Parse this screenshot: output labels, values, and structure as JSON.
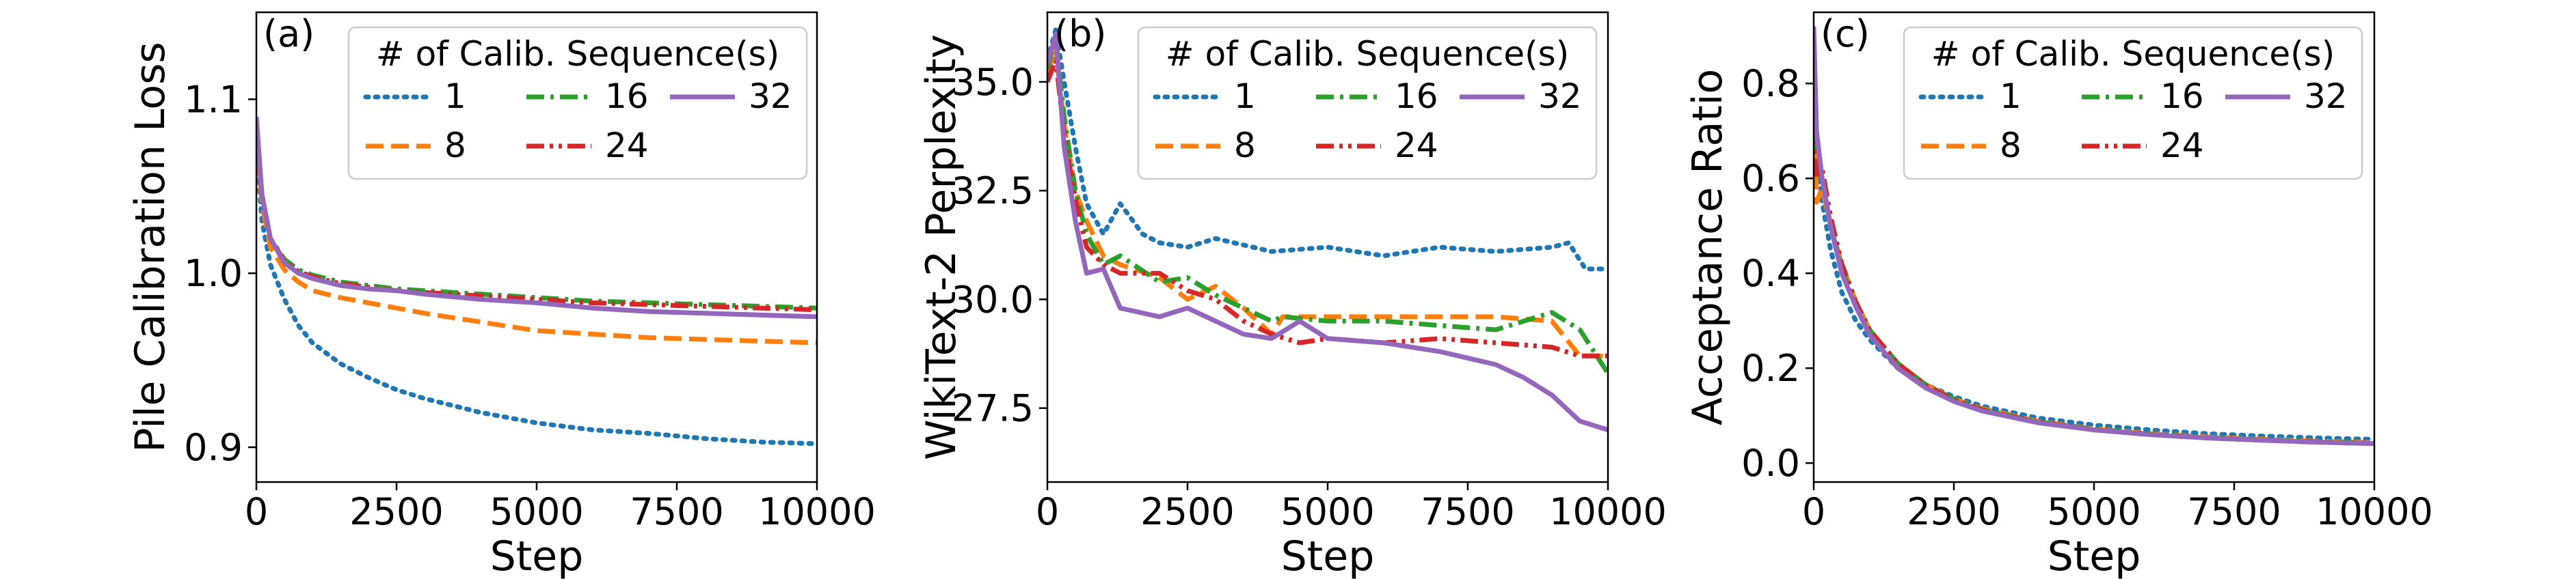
{
  "chart_data": [
    {
      "type": "line",
      "panel_tag": "(a)",
      "xlabel": "Step",
      "ylabel": "Pile Calibration Loss",
      "xlim": [
        0,
        10000
      ],
      "ylim": [
        0.88,
        1.15
      ],
      "xticks": [
        0,
        2500,
        5000,
        7500,
        10000
      ],
      "xtick_labels": [
        "0",
        "2500",
        "5000",
        "7500",
        "10000"
      ],
      "yticks": [
        0.9,
        1.0,
        1.1
      ],
      "ytick_labels": [
        "0.9",
        "1.0",
        "1.1"
      ],
      "legend": {
        "title": "# of Calib. Sequence(s)",
        "position": "top-right",
        "entries": [
          "1",
          "8",
          "16",
          "24",
          "32"
        ]
      },
      "series": [
        {
          "name": "1",
          "x": [
            0,
            100,
            250,
            500,
            750,
            1000,
            1500,
            2000,
            2500,
            3000,
            4000,
            5000,
            6000,
            7000,
            8000,
            9000,
            10000
          ],
          "values": [
            1.07,
            1.03,
            1.005,
            0.985,
            0.97,
            0.96,
            0.948,
            0.94,
            0.933,
            0.928,
            0.92,
            0.914,
            0.91,
            0.908,
            0.905,
            0.903,
            0.902
          ]
        },
        {
          "name": "8",
          "x": [
            0,
            100,
            250,
            500,
            750,
            1000,
            1500,
            2000,
            2500,
            3000,
            4000,
            5000,
            6000,
            7000,
            8000,
            9000,
            10000
          ],
          "values": [
            1.08,
            1.04,
            1.015,
            1.002,
            0.995,
            0.99,
            0.986,
            0.983,
            0.98,
            0.977,
            0.972,
            0.967,
            0.965,
            0.963,
            0.962,
            0.961,
            0.96
          ]
        },
        {
          "name": "16",
          "x": [
            0,
            100,
            250,
            500,
            750,
            1000,
            1500,
            2000,
            2500,
            3000,
            4000,
            5000,
            6000,
            7000,
            8000,
            9000,
            10000
          ],
          "values": [
            1.085,
            1.045,
            1.02,
            1.008,
            1.002,
            0.999,
            0.995,
            0.993,
            0.991,
            0.99,
            0.988,
            0.986,
            0.984,
            0.983,
            0.982,
            0.981,
            0.98
          ]
        },
        {
          "name": "24",
          "x": [
            0,
            100,
            250,
            500,
            750,
            1000,
            1500,
            2000,
            2500,
            3000,
            4000,
            5000,
            6000,
            7000,
            8000,
            9000,
            10000
          ],
          "values": [
            1.085,
            1.045,
            1.02,
            1.007,
            1.001,
            0.998,
            0.994,
            0.992,
            0.99,
            0.989,
            0.987,
            0.985,
            0.983,
            0.982,
            0.981,
            0.98,
            0.979
          ]
        },
        {
          "name": "32",
          "x": [
            0,
            100,
            250,
            500,
            750,
            1000,
            1500,
            2000,
            2500,
            3000,
            4000,
            5000,
            6000,
            7000,
            8000,
            9000,
            10000
          ],
          "values": [
            1.09,
            1.045,
            1.02,
            1.006,
            1.0,
            0.997,
            0.993,
            0.991,
            0.99,
            0.988,
            0.985,
            0.983,
            0.98,
            0.978,
            0.977,
            0.976,
            0.975
          ]
        }
      ]
    },
    {
      "type": "line",
      "panel_tag": "(b)",
      "xlabel": "Step",
      "ylabel": "WikiText-2 Perplexity",
      "xlim": [
        0,
        10000
      ],
      "ylim": [
        25.8,
        36.6
      ],
      "xticks": [
        0,
        2500,
        5000,
        7500,
        10000
      ],
      "xtick_labels": [
        "0",
        "2500",
        "5000",
        "7500",
        "10000"
      ],
      "yticks": [
        27.5,
        30.0,
        32.5,
        35.0
      ],
      "ytick_labels": [
        "27.5",
        "30.0",
        "32.5",
        "35.0"
      ],
      "legend": {
        "title": "# of Calib. Sequence(s)",
        "position": "top-right",
        "entries": [
          "1",
          "8",
          "16",
          "24",
          "32"
        ]
      },
      "series": [
        {
          "name": "1",
          "x": [
            0,
            150,
            300,
            500,
            700,
            1000,
            1300,
            1700,
            2000,
            2500,
            3000,
            4000,
            5000,
            6000,
            7000,
            8000,
            9000,
            9300,
            9600,
            10000
          ],
          "values": [
            35.5,
            36.2,
            35.0,
            33.5,
            32.2,
            31.5,
            32.2,
            31.5,
            31.3,
            31.2,
            31.4,
            31.1,
            31.2,
            31.0,
            31.2,
            31.1,
            31.2,
            31.3,
            30.7,
            30.7
          ]
        },
        {
          "name": "8",
          "x": [
            0,
            150,
            300,
            500,
            700,
            1000,
            1300,
            2000,
            2500,
            3000,
            3500,
            4000,
            4200,
            5000,
            6000,
            7000,
            8000,
            9000,
            9500,
            10000
          ],
          "values": [
            35.2,
            35.8,
            34.0,
            32.5,
            31.8,
            31.0,
            30.8,
            30.5,
            30.0,
            30.3,
            29.8,
            29.2,
            29.6,
            29.6,
            29.6,
            29.6,
            29.6,
            29.5,
            28.7,
            28.7
          ]
        },
        {
          "name": "16",
          "x": [
            0,
            150,
            300,
            500,
            700,
            1000,
            1300,
            2000,
            2500,
            3000,
            3500,
            4000,
            4200,
            5000,
            6000,
            7000,
            8000,
            9000,
            9500,
            10000
          ],
          "values": [
            35.3,
            36.0,
            34.2,
            32.5,
            31.5,
            30.8,
            31.0,
            30.4,
            30.5,
            30.1,
            29.8,
            29.5,
            29.6,
            29.5,
            29.5,
            29.4,
            29.3,
            29.7,
            29.3,
            28.3
          ]
        },
        {
          "name": "24",
          "x": [
            0,
            150,
            300,
            500,
            700,
            1000,
            1300,
            2000,
            2500,
            3000,
            3500,
            4000,
            4500,
            5000,
            6000,
            7000,
            8000,
            9000,
            9500,
            10000
          ],
          "values": [
            35.0,
            35.5,
            33.8,
            32.3,
            31.2,
            30.8,
            30.6,
            30.6,
            30.2,
            30.0,
            29.5,
            29.2,
            29.0,
            29.1,
            29.0,
            29.1,
            29.0,
            28.9,
            28.7,
            28.7
          ]
        },
        {
          "name": "32",
          "x": [
            0,
            150,
            300,
            500,
            700,
            1000,
            1300,
            2000,
            2500,
            3000,
            3500,
            4000,
            4500,
            5000,
            6000,
            7000,
            8000,
            8500,
            9000,
            9500,
            10000
          ],
          "values": [
            35.4,
            36.1,
            33.5,
            31.8,
            30.6,
            30.7,
            29.8,
            29.6,
            29.8,
            29.5,
            29.2,
            29.1,
            29.5,
            29.1,
            29.0,
            28.8,
            28.5,
            28.2,
            27.8,
            27.2,
            27.0
          ]
        }
      ]
    },
    {
      "type": "line",
      "panel_tag": "(c)",
      "xlabel": "Step",
      "ylabel": "Acceptance Ratio",
      "xlim": [
        0,
        10000
      ],
      "ylim": [
        -0.04,
        0.95
      ],
      "xticks": [
        0,
        2500,
        5000,
        7500,
        10000
      ],
      "xtick_labels": [
        "0",
        "2500",
        "5000",
        "7500",
        "10000"
      ],
      "yticks": [
        0.0,
        0.2,
        0.4,
        0.6,
        0.8
      ],
      "ytick_labels": [
        "0.0",
        "0.2",
        "0.4",
        "0.6",
        "0.8"
      ],
      "legend": {
        "title": "# of Calib. Sequence(s)",
        "position": "top-right",
        "entries": [
          "1",
          "8",
          "16",
          "24",
          "32"
        ]
      },
      "series": [
        {
          "name": "1",
          "x": [
            0,
            50,
            150,
            300,
            500,
            750,
            1000,
            1500,
            2000,
            2500,
            3000,
            4000,
            5000,
            6000,
            7000,
            8000,
            9000,
            10000
          ],
          "values": [
            0.9,
            0.65,
            0.55,
            0.45,
            0.36,
            0.3,
            0.26,
            0.2,
            0.165,
            0.14,
            0.12,
            0.095,
            0.08,
            0.07,
            0.062,
            0.057,
            0.053,
            0.05
          ]
        },
        {
          "name": "8",
          "x": [
            0,
            50,
            150,
            300,
            500,
            750,
            1000,
            1500,
            2000,
            2500,
            3000,
            4000,
            5000,
            6000,
            7000,
            8000,
            9000,
            10000
          ],
          "values": [
            0.88,
            0.55,
            0.58,
            0.5,
            0.42,
            0.34,
            0.28,
            0.21,
            0.165,
            0.135,
            0.115,
            0.088,
            0.072,
            0.062,
            0.055,
            0.05,
            0.046,
            0.043
          ]
        },
        {
          "name": "16",
          "x": [
            0,
            50,
            150,
            300,
            500,
            750,
            1000,
            1500,
            2000,
            2500,
            3000,
            4000,
            5000,
            6000,
            7000,
            8000,
            9000,
            10000
          ],
          "values": [
            0.9,
            0.62,
            0.6,
            0.5,
            0.41,
            0.33,
            0.28,
            0.21,
            0.165,
            0.135,
            0.113,
            0.087,
            0.071,
            0.061,
            0.054,
            0.049,
            0.045,
            0.042
          ]
        },
        {
          "name": "24",
          "x": [
            0,
            50,
            150,
            300,
            500,
            750,
            1000,
            1500,
            2000,
            2500,
            3000,
            4000,
            5000,
            6000,
            7000,
            8000,
            9000,
            10000
          ],
          "values": [
            0.9,
            0.6,
            0.62,
            0.52,
            0.42,
            0.34,
            0.28,
            0.21,
            0.163,
            0.133,
            0.112,
            0.086,
            0.07,
            0.06,
            0.053,
            0.048,
            0.044,
            0.041
          ]
        },
        {
          "name": "32",
          "x": [
            0,
            50,
            150,
            300,
            500,
            750,
            1000,
            1500,
            2000,
            2500,
            3000,
            4000,
            5000,
            6000,
            7000,
            8000,
            9000,
            10000
          ],
          "values": [
            0.92,
            0.7,
            0.6,
            0.5,
            0.4,
            0.33,
            0.27,
            0.2,
            0.158,
            0.13,
            0.11,
            0.085,
            0.07,
            0.06,
            0.053,
            0.048,
            0.044,
            0.041
          ]
        }
      ]
    }
  ],
  "series_styles": [
    {
      "name": "1",
      "color": "#1f77b4",
      "dash": "dotted"
    },
    {
      "name": "8",
      "color": "#ff7f0e",
      "dash": "dashed"
    },
    {
      "name": "16",
      "color": "#2ca02c",
      "dash": "dashdot"
    },
    {
      "name": "24",
      "color": "#d62728",
      "dash": "dashdotdot"
    },
    {
      "name": "32",
      "color": "#9467bd",
      "dash": "solid"
    }
  ]
}
